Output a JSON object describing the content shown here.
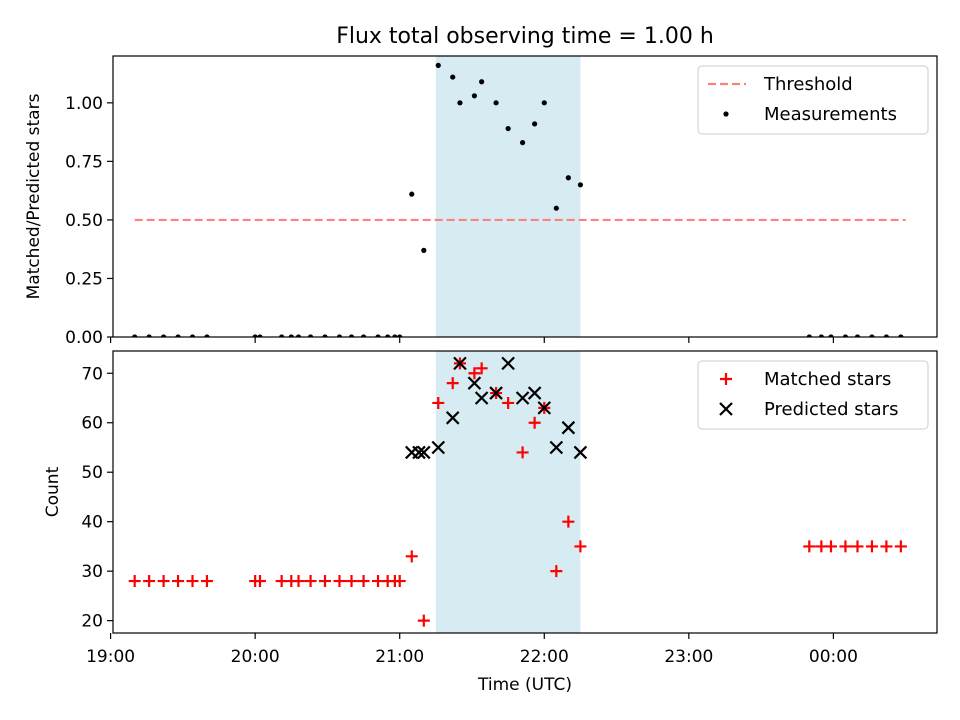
{
  "chart_data": [
    {
      "type": "scatter",
      "title": "Flux total observing time = 1.00 h",
      "ylabel": "Matched/Predicted stars",
      "xlabel": "",
      "ylim": [
        0,
        1.2
      ],
      "yticks": [
        0.0,
        0.25,
        0.5,
        0.75,
        1.0
      ],
      "ytick_labels": [
        "0.00",
        "0.25",
        "0.50",
        "0.75",
        "1.00"
      ],
      "xlim": [
        "19:01",
        "00:43"
      ],
      "shaded_interval": [
        "21:15",
        "22:15"
      ],
      "legend": {
        "placement": "upper right",
        "entries": [
          "Threshold",
          "Measurements"
        ]
      },
      "threshold": {
        "name": "Threshold",
        "y": 0.5,
        "x_range": [
          "19:10",
          "00:30"
        ],
        "color": "#ff7f7f",
        "style": "dashed"
      },
      "series": [
        {
          "name": "Measurements",
          "color": "#000000",
          "marker": "dot",
          "points": [
            [
              "19:10",
              0.0
            ],
            [
              "19:16",
              0.0
            ],
            [
              "19:22",
              0.0
            ],
            [
              "19:28",
              0.0
            ],
            [
              "19:34",
              0.0
            ],
            [
              "19:40",
              0.0
            ],
            [
              "20:00",
              0.0
            ],
            [
              "20:02",
              0.0
            ],
            [
              "20:11",
              0.0
            ],
            [
              "20:15",
              0.0
            ],
            [
              "20:18",
              0.0
            ],
            [
              "20:23",
              0.0
            ],
            [
              "20:29",
              0.0
            ],
            [
              "20:35",
              0.0
            ],
            [
              "20:40",
              0.0
            ],
            [
              "20:45",
              0.0
            ],
            [
              "20:51",
              0.0
            ],
            [
              "20:55",
              0.0
            ],
            [
              "20:58",
              0.0
            ],
            [
              "21:00",
              0.0
            ],
            [
              "21:05",
              0.61
            ],
            [
              "21:10",
              0.37
            ],
            [
              "21:16",
              1.16
            ],
            [
              "21:22",
              1.11
            ],
            [
              "21:25",
              1.0
            ],
            [
              "21:31",
              1.03
            ],
            [
              "21:34",
              1.09
            ],
            [
              "21:40",
              1.0
            ],
            [
              "21:45",
              0.89
            ],
            [
              "21:51",
              0.83
            ],
            [
              "21:56",
              0.91
            ],
            [
              "22:00",
              1.0
            ],
            [
              "22:05",
              0.55
            ],
            [
              "22:10",
              0.68
            ],
            [
              "22:15",
              0.65
            ],
            [
              "23:50",
              0.0
            ],
            [
              "23:55",
              0.0
            ],
            [
              "23:59",
              0.0
            ],
            [
              "00:05",
              0.0
            ],
            [
              "00:10",
              0.0
            ],
            [
              "00:16",
              0.0
            ],
            [
              "00:22",
              0.0
            ],
            [
              "00:28",
              0.0
            ]
          ]
        }
      ]
    },
    {
      "type": "scatter",
      "title": "",
      "ylabel": "Count",
      "xlabel": "Time (UTC)",
      "ylim": [
        17.5,
        74.5
      ],
      "yticks": [
        20,
        30,
        40,
        50,
        60,
        70
      ],
      "ytick_labels": [
        "20",
        "30",
        "40",
        "50",
        "60",
        "70"
      ],
      "xlim": [
        "19:01",
        "00:43"
      ],
      "xticks": [
        "19:00",
        "20:00",
        "21:00",
        "22:00",
        "23:00",
        "00:00"
      ],
      "xtick_labels": [
        "19:00",
        "20:00",
        "21:00",
        "22:00",
        "23:00",
        "00:00"
      ],
      "shaded_interval": [
        "21:15",
        "22:15"
      ],
      "legend": {
        "placement": "upper right",
        "entries": [
          "Matched stars",
          "Predicted stars"
        ]
      },
      "series": [
        {
          "name": "Matched stars",
          "color": "#ff0000",
          "marker": "plus",
          "points": [
            [
              "19:10",
              28
            ],
            [
              "19:16",
              28
            ],
            [
              "19:22",
              28
            ],
            [
              "19:28",
              28
            ],
            [
              "19:34",
              28
            ],
            [
              "19:40",
              28
            ],
            [
              "20:00",
              28
            ],
            [
              "20:02",
              28
            ],
            [
              "20:11",
              28
            ],
            [
              "20:15",
              28
            ],
            [
              "20:18",
              28
            ],
            [
              "20:23",
              28
            ],
            [
              "20:29",
              28
            ],
            [
              "20:35",
              28
            ],
            [
              "20:40",
              28
            ],
            [
              "20:45",
              28
            ],
            [
              "20:51",
              28
            ],
            [
              "20:55",
              28
            ],
            [
              "20:58",
              28
            ],
            [
              "21:00",
              28
            ],
            [
              "21:05",
              33
            ],
            [
              "21:10",
              20
            ],
            [
              "21:16",
              64
            ],
            [
              "21:22",
              68
            ],
            [
              "21:25",
              72
            ],
            [
              "21:31",
              70
            ],
            [
              "21:34",
              71
            ],
            [
              "21:40",
              66
            ],
            [
              "21:45",
              64
            ],
            [
              "21:51",
              54
            ],
            [
              "21:56",
              60
            ],
            [
              "22:00",
              63
            ],
            [
              "22:05",
              30
            ],
            [
              "22:10",
              40
            ],
            [
              "22:15",
              35
            ],
            [
              "23:50",
              35
            ],
            [
              "23:55",
              35
            ],
            [
              "23:59",
              35
            ],
            [
              "00:05",
              35
            ],
            [
              "00:10",
              35
            ],
            [
              "00:16",
              35
            ],
            [
              "00:22",
              35
            ],
            [
              "00:28",
              35
            ]
          ]
        },
        {
          "name": "Predicted stars",
          "color": "#000000",
          "marker": "x",
          "points": [
            [
              "21:05",
              54
            ],
            [
              "21:08",
              54
            ],
            [
              "21:10",
              54
            ],
            [
              "21:16",
              55
            ],
            [
              "21:22",
              61
            ],
            [
              "21:25",
              72
            ],
            [
              "21:31",
              68
            ],
            [
              "21:34",
              65
            ],
            [
              "21:40",
              66
            ],
            [
              "21:45",
              72
            ],
            [
              "21:51",
              65
            ],
            [
              "21:56",
              66
            ],
            [
              "22:00",
              63
            ],
            [
              "22:05",
              55
            ],
            [
              "22:10",
              59
            ],
            [
              "22:15",
              54
            ]
          ]
        }
      ]
    }
  ]
}
